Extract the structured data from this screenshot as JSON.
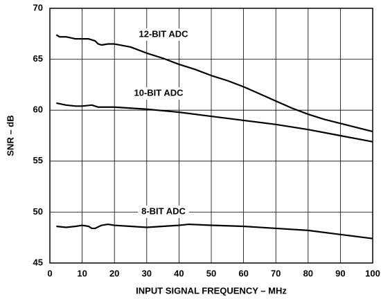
{
  "chart_data": {
    "type": "line",
    "xlabel": "INPUT SIGNAL FREQUENCY – MHz",
    "ylabel": "SNR – dB",
    "xlim": [
      0,
      100
    ],
    "xticks": [
      0,
      10,
      20,
      30,
      40,
      50,
      60,
      70,
      80,
      90,
      100
    ],
    "ylim": [
      45,
      70
    ],
    "yticks": [
      45,
      50,
      55,
      60,
      65,
      70
    ],
    "grid": true,
    "series": [
      {
        "name": "12-BIT ADC",
        "color": "#000000",
        "x": [
          2,
          3,
          5,
          8,
          10,
          12,
          14,
          15,
          16,
          18,
          20,
          25,
          30,
          35,
          40,
          45,
          50,
          55,
          60,
          65,
          70,
          75,
          80,
          85,
          90,
          95,
          100
        ],
        "values": [
          67.4,
          67.2,
          67.2,
          67.0,
          67.0,
          67.0,
          66.8,
          66.5,
          66.4,
          66.5,
          66.5,
          66.2,
          65.6,
          65.1,
          64.5,
          64.0,
          63.4,
          62.9,
          62.3,
          61.6,
          60.9,
          60.2,
          59.6,
          59.1,
          58.7,
          58.3,
          57.9
        ]
      },
      {
        "name": "10-BIT ADC",
        "color": "#000000",
        "x": [
          2,
          5,
          8,
          10,
          13,
          15,
          20,
          25,
          30,
          40,
          50,
          60,
          70,
          80,
          90,
          100
        ],
        "values": [
          60.7,
          60.5,
          60.4,
          60.4,
          60.5,
          60.3,
          60.3,
          60.2,
          60.1,
          59.8,
          59.4,
          59.0,
          58.6,
          58.1,
          57.5,
          56.9
        ]
      },
      {
        "name": "8-BIT ADC",
        "color": "#000000",
        "x": [
          2,
          5,
          8,
          10,
          12,
          13,
          14,
          16,
          18,
          20,
          25,
          30,
          35,
          40,
          43,
          50,
          60,
          70,
          80,
          90,
          100
        ],
        "values": [
          48.6,
          48.5,
          48.6,
          48.7,
          48.6,
          48.4,
          48.4,
          48.7,
          48.8,
          48.7,
          48.6,
          48.5,
          48.6,
          48.7,
          48.8,
          48.7,
          48.6,
          48.4,
          48.2,
          47.8,
          47.4
        ]
      }
    ]
  }
}
